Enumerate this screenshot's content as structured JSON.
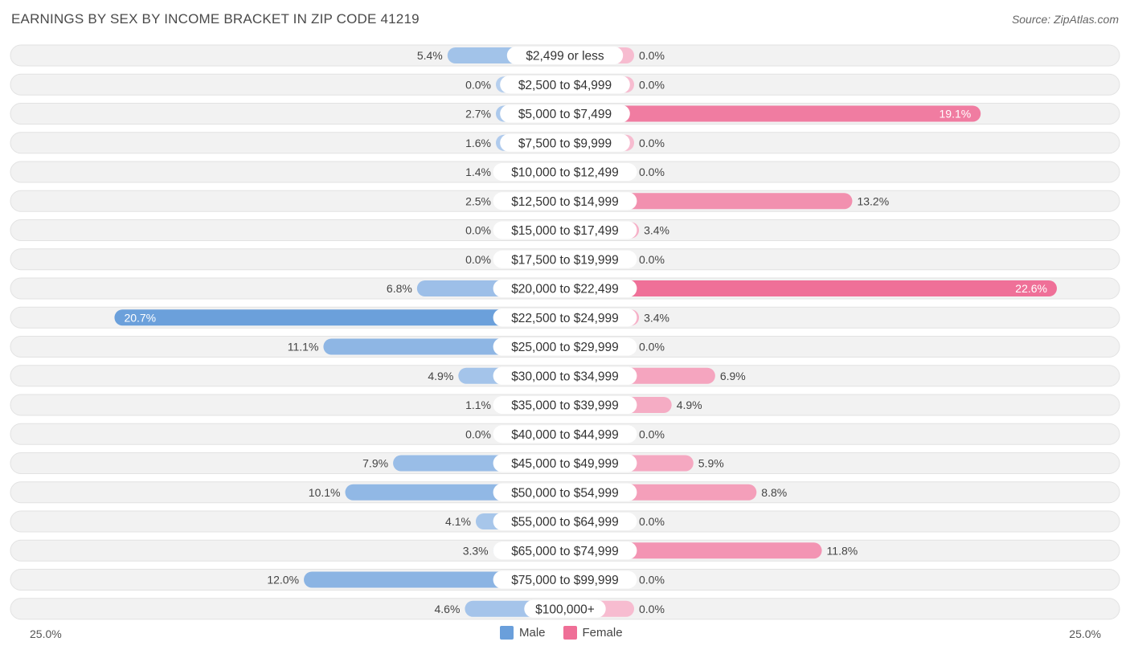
{
  "title": "EARNINGS BY SEX BY INCOME BRACKET IN ZIP CODE 41219",
  "source": "Source: ZipAtlas.com",
  "colors": {
    "male": "#8fb4e3",
    "male_strong": "#6a9fdb",
    "female": "#f4a6be",
    "female_strong": "#ef6f97",
    "row_bg": "#f2f2f2",
    "row_border": "#e2e2e2"
  },
  "axis": {
    "left_label": "25.0%",
    "right_label": "25.0%"
  },
  "legend": {
    "male_label": "Male",
    "female_label": "Female"
  },
  "chart_data": {
    "type": "bar",
    "orientation": "horizontal-diverging",
    "title": "EARNINGS BY SEX BY INCOME BRACKET IN ZIP CODE 41219",
    "xlim": [
      -25,
      25
    ],
    "categories": [
      "$2,499 or less",
      "$2,500 to $4,999",
      "$5,000 to $7,499",
      "$7,500 to $9,999",
      "$10,000 to $12,499",
      "$12,500 to $14,999",
      "$15,000 to $17,499",
      "$17,500 to $19,999",
      "$20,000 to $22,499",
      "$22,500 to $24,999",
      "$25,000 to $29,999",
      "$30,000 to $34,999",
      "$35,000 to $39,999",
      "$40,000 to $44,999",
      "$45,000 to $49,999",
      "$50,000 to $54,999",
      "$55,000 to $64,999",
      "$65,000 to $74,999",
      "$75,000 to $99,999",
      "$100,000+"
    ],
    "series": [
      {
        "name": "Male",
        "values": [
          5.4,
          0.0,
          2.7,
          1.6,
          1.4,
          2.5,
          0.0,
          0.0,
          6.8,
          20.7,
          11.1,
          4.9,
          1.1,
          0.0,
          7.9,
          10.1,
          4.1,
          3.3,
          12.0,
          4.6
        ],
        "labels": [
          "5.4%",
          "0.0%",
          "2.7%",
          "1.6%",
          "1.4%",
          "2.5%",
          "0.0%",
          "0.0%",
          "6.8%",
          "20.7%",
          "11.1%",
          "4.9%",
          "1.1%",
          "0.0%",
          "7.9%",
          "10.1%",
          "4.1%",
          "3.3%",
          "12.0%",
          "4.6%"
        ]
      },
      {
        "name": "Female",
        "values": [
          0.0,
          0.0,
          19.1,
          0.0,
          0.0,
          13.2,
          3.4,
          0.0,
          22.6,
          3.4,
          0.0,
          6.9,
          4.9,
          0.0,
          5.9,
          8.8,
          0.0,
          11.8,
          0.0,
          0.0
        ],
        "labels": [
          "0.0%",
          "0.0%",
          "19.1%",
          "0.0%",
          "0.0%",
          "13.2%",
          "3.4%",
          "0.0%",
          "22.6%",
          "3.4%",
          "0.0%",
          "6.9%",
          "4.9%",
          "0.0%",
          "5.9%",
          "8.8%",
          "0.0%",
          "11.8%",
          "0.0%",
          "0.0%"
        ]
      }
    ]
  }
}
